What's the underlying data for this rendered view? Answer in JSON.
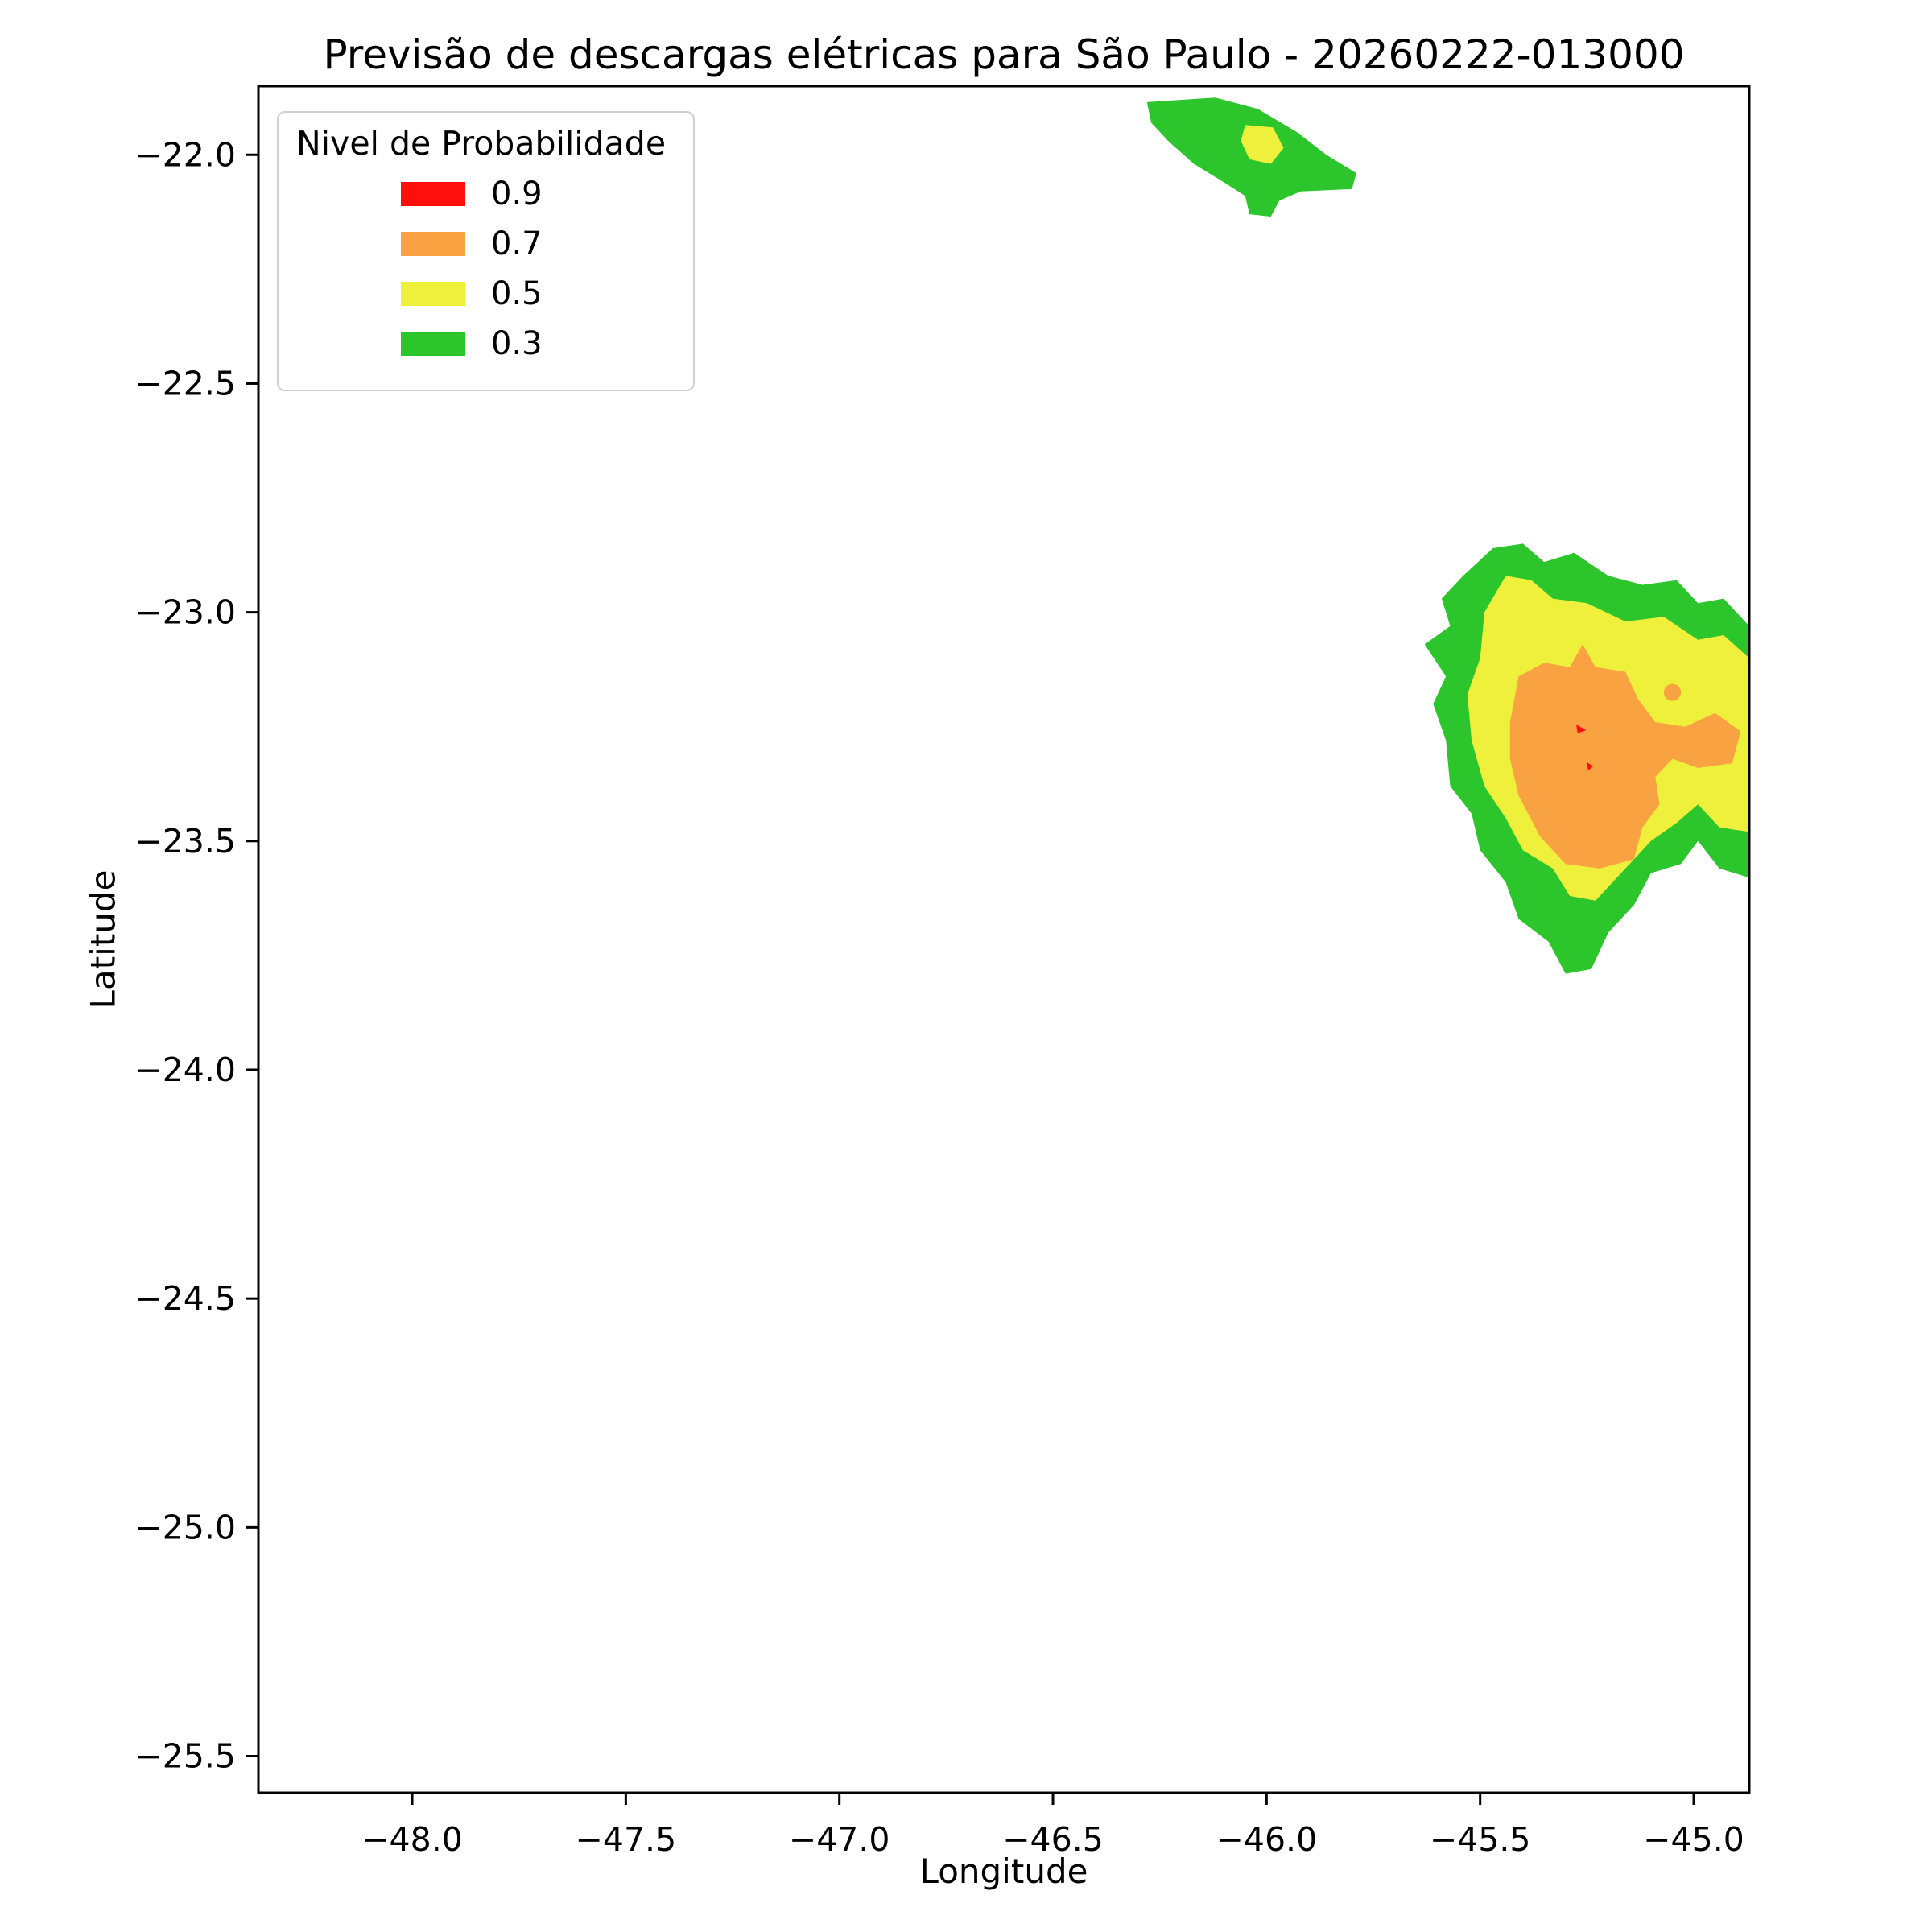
{
  "chart_data": {
    "type": "filled-contour-map",
    "title": "Previsão de descargas elétricas para São Paulo - 20260222-013000",
    "xlabel": "Longitude",
    "ylabel": "Latitude",
    "xlim": [
      -48.36,
      -44.87
    ],
    "ylim": [
      -25.58,
      -21.85
    ],
    "grid": false,
    "background": "#ffffff",
    "xticks": [
      -48.0,
      -47.5,
      -47.0,
      -46.5,
      -46.0,
      -45.5,
      -45.0
    ],
    "xtick_labels": [
      "−48.0",
      "−47.5",
      "−47.0",
      "−46.5",
      "−46.0",
      "−45.5",
      "−45.0"
    ],
    "yticks": [
      -22.0,
      -22.5,
      -23.0,
      -23.5,
      -24.0,
      -24.5,
      -25.0,
      -25.5
    ],
    "ytick_labels": [
      "−22.0",
      "−22.5",
      "−23.0",
      "−23.5",
      "−24.0",
      "−24.5",
      "−25.0",
      "−25.5"
    ],
    "legend": {
      "title": "Nivel de Probabilidade",
      "position": "upper left",
      "entries": [
        {
          "label": "0.9",
          "color": "#ff0e0e"
        },
        {
          "label": "0.7",
          "color": "#f9a242"
        },
        {
          "label": "0.5",
          "color": "#eef03c"
        },
        {
          "label": "0.3",
          "color": "#2cc52c"
        }
      ]
    },
    "regions": [
      {
        "name": "north-cell-p03",
        "level": "0.3",
        "shape": "polygon",
        "points": [
          [
            -46.28,
            -21.885
          ],
          [
            -46.12,
            -21.875
          ],
          [
            -46.02,
            -21.9
          ],
          [
            -45.93,
            -21.95
          ],
          [
            -45.86,
            -22.0
          ],
          [
            -45.79,
            -22.04
          ],
          [
            -45.8,
            -22.075
          ],
          [
            -45.92,
            -22.08
          ],
          [
            -45.97,
            -22.1
          ],
          [
            -45.99,
            -22.135
          ],
          [
            -46.04,
            -22.13
          ],
          [
            -46.05,
            -22.09
          ],
          [
            -46.1,
            -22.06
          ],
          [
            -46.17,
            -22.02
          ],
          [
            -46.23,
            -21.97
          ],
          [
            -46.27,
            -21.93
          ]
        ]
      },
      {
        "name": "north-cell-p05",
        "level": "0.5",
        "shape": "polygon",
        "points": [
          [
            -46.05,
            -21.935
          ],
          [
            -45.985,
            -21.94
          ],
          [
            -45.96,
            -21.985
          ],
          [
            -45.99,
            -22.02
          ],
          [
            -46.04,
            -22.01
          ],
          [
            -46.06,
            -21.97
          ]
        ]
      },
      {
        "name": "east-cell-p03",
        "level": "0.3",
        "shape": "polygon",
        "points": [
          [
            -45.54,
            -22.92
          ],
          [
            -45.47,
            -22.86
          ],
          [
            -45.4,
            -22.85
          ],
          [
            -45.35,
            -22.89
          ],
          [
            -45.28,
            -22.87
          ],
          [
            -45.2,
            -22.92
          ],
          [
            -45.12,
            -22.94
          ],
          [
            -45.04,
            -22.93
          ],
          [
            -44.99,
            -22.98
          ],
          [
            -44.93,
            -22.97
          ],
          [
            -44.87,
            -23.03
          ],
          [
            -44.87,
            -23.58
          ],
          [
            -44.94,
            -23.56
          ],
          [
            -44.99,
            -23.5
          ],
          [
            -45.03,
            -23.55
          ],
          [
            -45.1,
            -23.57
          ],
          [
            -45.14,
            -23.64
          ],
          [
            -45.2,
            -23.7
          ],
          [
            -45.24,
            -23.78
          ],
          [
            -45.3,
            -23.79
          ],
          [
            -45.34,
            -23.72
          ],
          [
            -45.41,
            -23.67
          ],
          [
            -45.44,
            -23.59
          ],
          [
            -45.5,
            -23.52
          ],
          [
            -45.52,
            -23.44
          ],
          [
            -45.57,
            -23.38
          ],
          [
            -45.58,
            -23.28
          ],
          [
            -45.61,
            -23.2
          ],
          [
            -45.58,
            -23.14
          ],
          [
            -45.63,
            -23.07
          ],
          [
            -45.57,
            -23.03
          ],
          [
            -45.59,
            -22.97
          ]
        ]
      },
      {
        "name": "east-cell-p05",
        "level": "0.5",
        "shape": "polygon",
        "points": [
          [
            -45.49,
            -23.0
          ],
          [
            -45.44,
            -22.92
          ],
          [
            -45.38,
            -22.93
          ],
          [
            -45.33,
            -22.97
          ],
          [
            -45.25,
            -22.98
          ],
          [
            -45.16,
            -23.02
          ],
          [
            -45.07,
            -23.01
          ],
          [
            -44.99,
            -23.06
          ],
          [
            -44.93,
            -23.05
          ],
          [
            -44.87,
            -23.1
          ],
          [
            -44.87,
            -23.48
          ],
          [
            -44.94,
            -23.47
          ],
          [
            -44.99,
            -23.42
          ],
          [
            -45.04,
            -23.46
          ],
          [
            -45.1,
            -23.5
          ],
          [
            -45.16,
            -23.56
          ],
          [
            -45.23,
            -23.63
          ],
          [
            -45.29,
            -23.62
          ],
          [
            -45.33,
            -23.56
          ],
          [
            -45.4,
            -23.52
          ],
          [
            -45.44,
            -23.45
          ],
          [
            -45.49,
            -23.38
          ],
          [
            -45.52,
            -23.28
          ],
          [
            -45.53,
            -23.18
          ],
          [
            -45.5,
            -23.1
          ]
        ]
      },
      {
        "name": "east-cell-p07",
        "level": "0.7",
        "shape": "polygon",
        "points": [
          [
            -45.43,
            -23.24
          ],
          [
            -45.41,
            -23.14
          ],
          [
            -45.35,
            -23.11
          ],
          [
            -45.29,
            -23.12
          ],
          [
            -45.26,
            -23.07
          ],
          [
            -45.23,
            -23.12
          ],
          [
            -45.16,
            -23.13
          ],
          [
            -45.13,
            -23.19
          ],
          [
            -45.09,
            -23.24
          ],
          [
            -45.02,
            -23.25
          ],
          [
            -44.95,
            -23.22
          ],
          [
            -44.89,
            -23.26
          ],
          [
            -44.91,
            -23.33
          ],
          [
            -44.99,
            -23.34
          ],
          [
            -45.05,
            -23.32
          ],
          [
            -45.09,
            -23.36
          ],
          [
            -45.08,
            -23.42
          ],
          [
            -45.12,
            -23.47
          ],
          [
            -45.14,
            -23.54
          ],
          [
            -45.22,
            -23.56
          ],
          [
            -45.3,
            -23.55
          ],
          [
            -45.36,
            -23.49
          ],
          [
            -45.41,
            -23.4
          ],
          [
            -45.43,
            -23.32
          ]
        ]
      },
      {
        "name": "east-cell-p07-dot",
        "level": "0.7",
        "shape": "circle",
        "center": [
          -45.05,
          -23.175
        ],
        "radius": 0.02
      },
      {
        "name": "east-cell-p09-a",
        "level": "0.9",
        "shape": "polygon",
        "points": [
          [
            -45.275,
            -23.245
          ],
          [
            -45.252,
            -23.258
          ],
          [
            -45.272,
            -23.264
          ]
        ]
      },
      {
        "name": "east-cell-p09-b",
        "level": "0.9",
        "shape": "polygon",
        "points": [
          [
            -45.25,
            -23.328
          ],
          [
            -45.235,
            -23.336
          ],
          [
            -45.247,
            -23.346
          ]
        ]
      }
    ]
  }
}
